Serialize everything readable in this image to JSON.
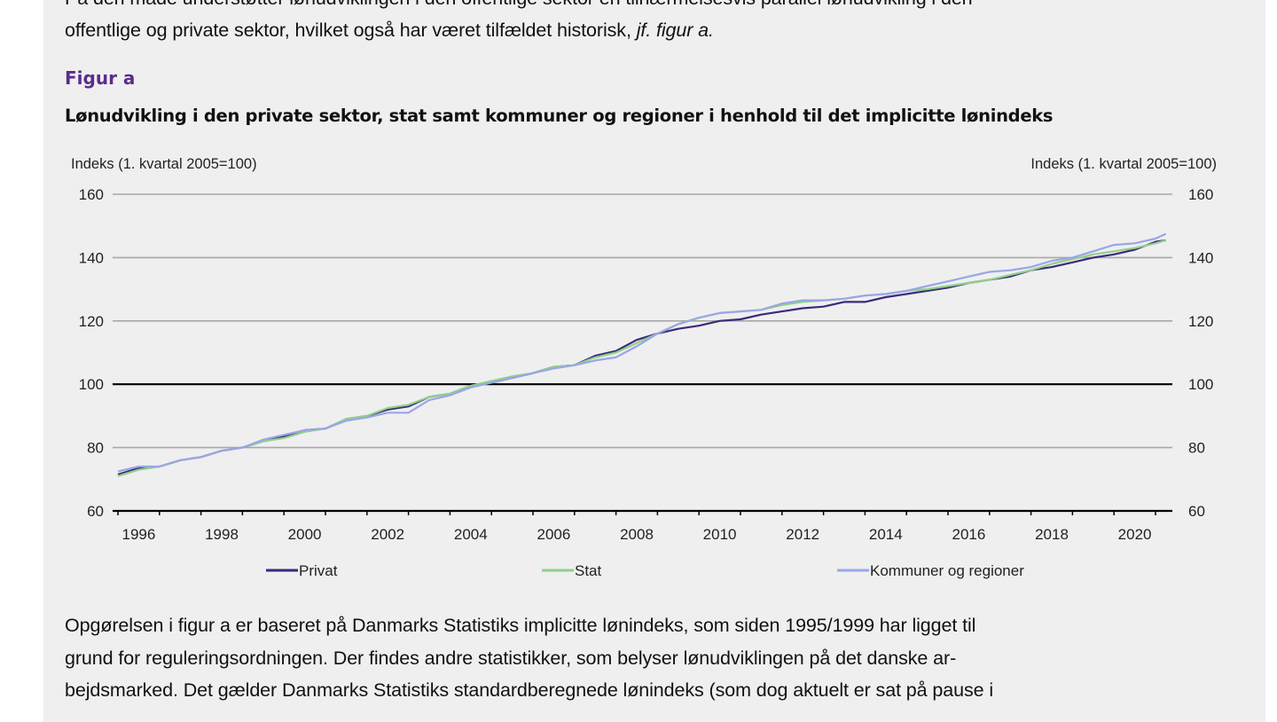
{
  "document": {
    "intro_lines": [
      "På den måde understøtter lønudviklingen i den offentlige sektor en tilnærmelsesvis parallel lønudvikling i den",
      "offentlige og private sektor, hvilket også har været tilfældet historisk, "
    ],
    "intro_ref": "jf. figur",
    "intro_end": " a.",
    "figure_label": "Figur a",
    "figure_title": "Lønudvikling i den private sektor, stat samt kommuner og regioner i henhold til det implicitte lønindeks",
    "body_lines": [
      "Opgørelsen i figur a er baseret på Danmarks Statistiks implicitte lønindeks, som siden 1995/1999 har ligget til",
      "grund for reguleringsordningen. Der findes andre statistikker, som belyser lønudviklingen på det danske ar-",
      "bejdsmarked. Det gælder Danmarks Statistiks standardberegnede lønindeks (som dog aktuelt er sat på pause i"
    ]
  },
  "chart_data": {
    "type": "line",
    "title": "Lønudvikling i den private sektor, stat samt kommuner og regioner i henhold til det implicitte lønindeks",
    "ylabel_left": "Indeks (1. kvartal 2005=100)",
    "ylabel_right": "Indeks (1. kvartal 2005=100)",
    "ylim": [
      60,
      160
    ],
    "yticks": [
      60,
      80,
      100,
      120,
      140,
      160
    ],
    "xlim": [
      1996,
      2021.4
    ],
    "xtick_labels": [
      "1996",
      "1998",
      "2000",
      "2002",
      "2004",
      "2006",
      "2008",
      "2010",
      "2012",
      "2014",
      "2016",
      "2018",
      "2020"
    ],
    "reference_line": 100,
    "grid": true,
    "legend_position": "bottom",
    "x": [
      1996,
      1996.5,
      1997,
      1997.5,
      1998,
      1998.5,
      1999,
      1999.5,
      2000,
      2000.5,
      2001,
      2001.5,
      2002,
      2002.5,
      2003,
      2003.5,
      2004,
      2004.5,
      2005,
      2005.5,
      2006,
      2006.5,
      2007,
      2007.5,
      2008,
      2008.5,
      2009,
      2009.5,
      2010,
      2010.5,
      2011,
      2011.5,
      2012,
      2012.5,
      2013,
      2013.5,
      2014,
      2014.5,
      2015,
      2015.5,
      2016,
      2016.5,
      2017,
      2017.5,
      2018,
      2018.5,
      2019,
      2019.5,
      2020,
      2020.5,
      2021,
      2021.25
    ],
    "series": [
      {
        "name": "Privat",
        "color": "#3b2a7a",
        "values": [
          71.5,
          73.5,
          74,
          76,
          77,
          79,
          80,
          82,
          83.5,
          85.5,
          86,
          89,
          90,
          92,
          93,
          96,
          97,
          99.5,
          100.5,
          102,
          103.5,
          105.5,
          106,
          109,
          110.5,
          114,
          116,
          117.5,
          118.5,
          120,
          120.5,
          122,
          123,
          124,
          124.5,
          126,
          126,
          127.5,
          128.5,
          129.5,
          130.5,
          132,
          133,
          134,
          136,
          137,
          138.5,
          140,
          141,
          142.5,
          145,
          145.5
        ]
      },
      {
        "name": "Stat",
        "color": "#8fd18a",
        "values": [
          71,
          73,
          74,
          76,
          77,
          79,
          80,
          82,
          83,
          85,
          86,
          89,
          90,
          92.5,
          93.5,
          96,
          97,
          99.5,
          101,
          102.5,
          103.5,
          105.5,
          106,
          108.5,
          110,
          113,
          116,
          119,
          121,
          122.5,
          123,
          123.5,
          125,
          126,
          126.5,
          127,
          128,
          128.5,
          129.5,
          130,
          131,
          132,
          133,
          134.5,
          136,
          138,
          139.5,
          141,
          142,
          143,
          144.5,
          145.5
        ]
      },
      {
        "name": "Kommuner og regioner",
        "color": "#9aa6e6",
        "values": [
          72.5,
          74,
          74,
          76,
          77,
          79,
          80,
          82.5,
          84,
          85.5,
          86,
          88.5,
          89.5,
          91,
          91,
          95,
          96.5,
          99,
          100.5,
          102,
          103.5,
          105,
          106,
          107.5,
          108.5,
          112,
          116,
          119,
          121,
          122.5,
          123,
          123.5,
          125.5,
          126.5,
          126.5,
          127,
          128,
          128.5,
          129.5,
          131,
          132.5,
          134,
          135.5,
          136,
          137,
          139,
          140,
          142,
          144,
          144.5,
          146,
          147.5
        ]
      }
    ]
  }
}
